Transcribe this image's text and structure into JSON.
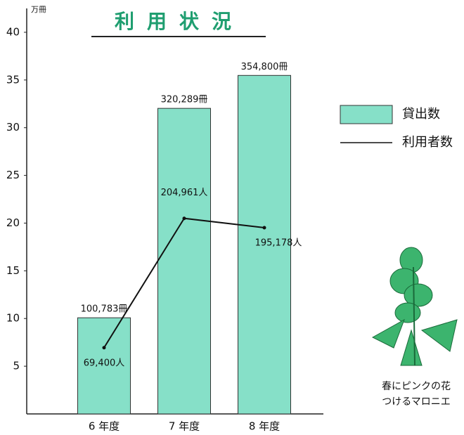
{
  "chart_data": {
    "type": "bar",
    "title": "利用状況",
    "y_unit_label": "万冊",
    "categories": [
      "6 年度",
      "7 年度",
      "8 年度"
    ],
    "series": [
      {
        "name": "貸出数",
        "type": "bar",
        "color": "#86e0c8",
        "values": [
          10.0783,
          32.0289,
          35.48
        ],
        "value_labels": [
          "100,783冊",
          "320,289冊",
          "354,800冊"
        ]
      },
      {
        "name": "利用者数",
        "type": "line",
        "color": "#111111",
        "values": [
          6.94,
          20.4961,
          19.5178
        ],
        "value_labels": [
          "69,400人",
          "204,961人",
          "195,178人"
        ]
      }
    ],
    "ylim": [
      0,
      42.5
    ],
    "yticks": [
      5,
      10,
      15,
      20,
      25,
      30,
      35,
      40
    ],
    "grid": false,
    "legend": "right",
    "annotation": [
      "春にピンクの花",
      "つけるマロニエ"
    ]
  }
}
